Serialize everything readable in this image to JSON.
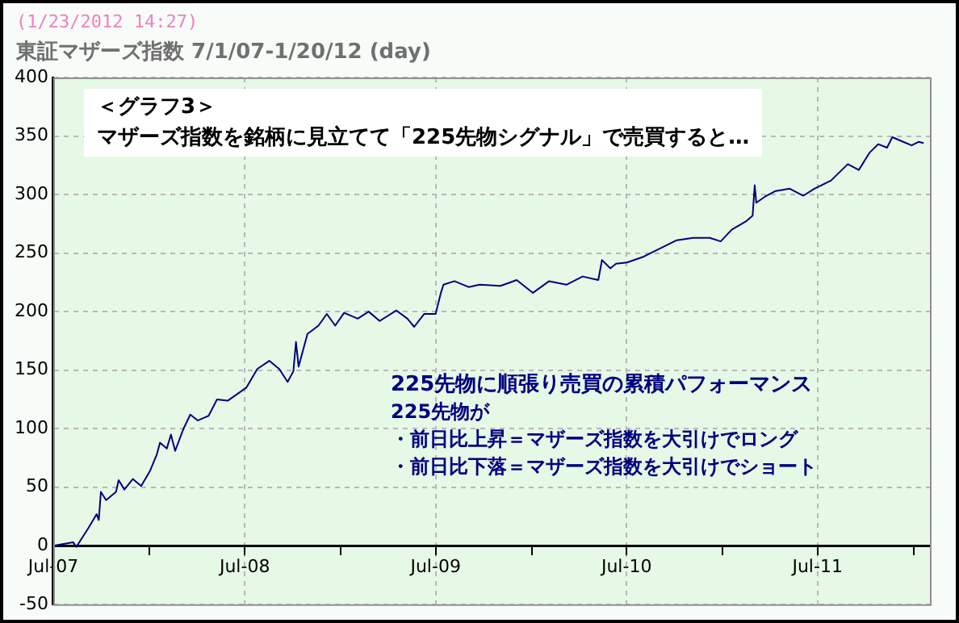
{
  "chart_data": {
    "type": "line",
    "subtitle": "(1/23/2012 14:27)",
    "title": "東証マザーズ指数  7/1/07-1/20/12 (day)",
    "annotations": [
      "＜グラフ3＞",
      "マザーズ指数を銘柄に見立てて「225先物シグナル」で売買すると…",
      "225先物に順張り売買の累積パフォーマンス",
      "225先物が",
      "・前日比上昇＝マザーズ指数を大引けでロング",
      "・前日比下落＝マザーズ指数を大引けでショート"
    ],
    "x": [
      "2007-07-01",
      "2007-08-08",
      "2007-08-14",
      "2007-09-06",
      "2007-09-22",
      "2007-09-26",
      "2007-09-30",
      "2007-10-10",
      "2007-10-29",
      "2007-11-03",
      "2007-11-14",
      "2007-11-30",
      "2007-12-16",
      "2008-01-02",
      "2008-01-15",
      "2008-01-21",
      "2008-02-03",
      "2008-02-11",
      "2008-02-19",
      "2008-03-06",
      "2008-03-19",
      "2008-04-02",
      "2008-04-23",
      "2008-05-09",
      "2008-05-30",
      "2008-07-04",
      "2008-07-25",
      "2008-08-17",
      "2008-09-05",
      "2008-09-21",
      "2008-10-02",
      "2008-10-07",
      "2008-10-12",
      "2008-10-29",
      "2008-11-19",
      "2008-12-05",
      "2008-12-21",
      "2009-01-07",
      "2009-02-02",
      "2009-02-23",
      "2009-03-16",
      "2009-04-17",
      "2009-05-08",
      "2009-05-21",
      "2009-06-09",
      "2009-07-01",
      "2009-07-11",
      "2009-07-16",
      "2009-08-06",
      "2009-09-02",
      "2009-09-23",
      "2009-11-02",
      "2009-12-03",
      "2010-01-03",
      "2010-02-03",
      "2010-03-08",
      "2010-04-08",
      "2010-05-08",
      "2010-05-15",
      "2010-05-31",
      "2010-06-11",
      "2010-07-02",
      "2010-08-03",
      "2010-09-03",
      "2010-10-05",
      "2010-11-05",
      "2010-12-07",
      "2010-12-28",
      "2011-01-18",
      "2011-02-14",
      "2011-02-27",
      "2011-03-03",
      "2011-03-06",
      "2011-03-22",
      "2011-04-12",
      "2011-05-09",
      "2011-06-04",
      "2011-06-25",
      "2011-07-27",
      "2011-08-28",
      "2011-09-18",
      "2011-10-09",
      "2011-10-25",
      "2011-11-11",
      "2011-11-21",
      "2011-12-12",
      "2011-12-28",
      "2012-01-10",
      "2012-01-20"
    ],
    "values": [
      0,
      3,
      -1,
      15,
      27,
      22,
      46,
      39,
      46,
      56,
      48,
      57,
      51,
      64,
      78,
      88,
      83,
      95,
      81,
      100,
      112,
      107,
      111,
      125,
      124,
      135,
      151,
      158,
      151,
      140,
      149,
      174,
      153,
      181,
      188,
      198,
      188,
      199,
      194,
      200,
      192,
      201,
      194,
      187,
      198,
      198,
      216,
      223,
      226,
      221,
      223,
      222,
      227,
      216,
      226,
      223,
      230,
      227,
      244,
      237,
      241,
      242,
      247,
      254,
      261,
      263,
      263,
      260,
      270,
      277,
      282,
      308,
      293,
      298,
      303,
      305,
      299,
      305,
      312,
      326,
      321,
      336,
      343,
      340,
      349,
      345,
      342,
      345,
      344
    ],
    "color": "#000080",
    "xlim": [
      "2007-07-01",
      "2012-02-01"
    ],
    "xticks": [
      {
        "value": "2007-07-01",
        "label": "Jul-07"
      },
      {
        "value": "2008-01-01",
        "label": null
      },
      {
        "value": "2008-07-01",
        "label": "Jul-08"
      },
      {
        "value": "2009-01-01",
        "label": null
      },
      {
        "value": "2009-07-01",
        "label": "Jul-09"
      },
      {
        "value": "2010-01-01",
        "label": null
      },
      {
        "value": "2010-07-01",
        "label": "Jul-10"
      },
      {
        "value": "2011-01-01",
        "label": null
      },
      {
        "value": "2011-07-01",
        "label": "Jul-11"
      },
      {
        "value": "2012-01-01",
        "label": null
      }
    ],
    "ylim": [
      -50,
      400
    ],
    "yticks": [
      -50,
      0,
      50,
      100,
      150,
      200,
      250,
      300,
      350,
      400
    ],
    "grid": true
  }
}
